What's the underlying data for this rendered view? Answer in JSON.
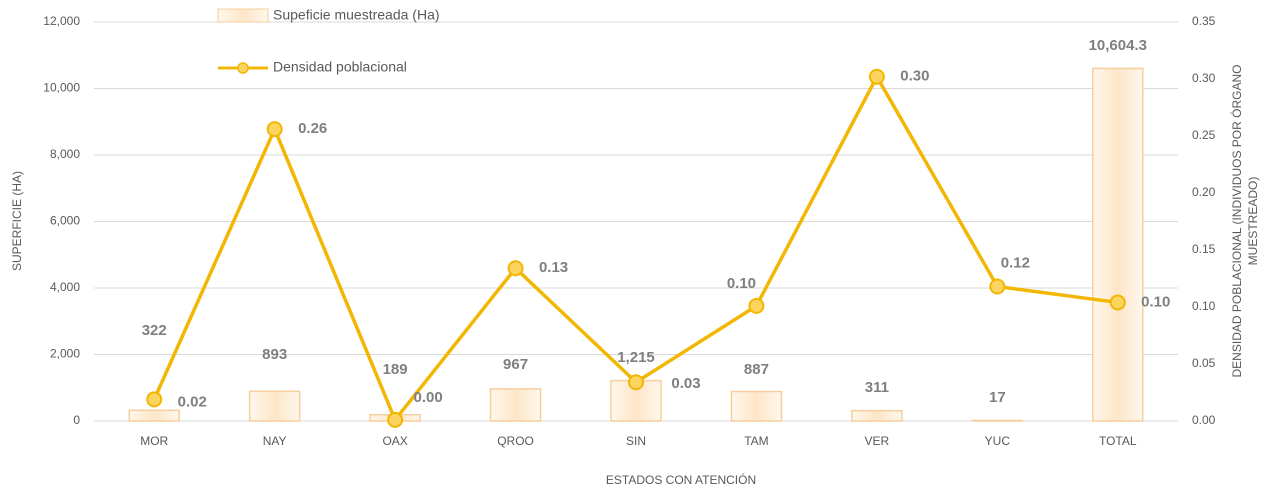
{
  "chart_data": {
    "type": "bar_line",
    "xlabel": "ESTADOS CON ATENCIÓN",
    "ylabel": "SUPERFICIE (HA)",
    "y2label": [
      "DENSIDAD POBLACIONAL (INDIVIDUOS POR ÓRGANO",
      "MUESTREADO)"
    ],
    "categories": [
      "MOR",
      "NAY",
      "OAX",
      "QROO",
      "SIN",
      "TAM",
      "VER",
      "YUC",
      "TOTAL"
    ],
    "series": [
      {
        "name": "Supeficie muestreada (Ha)",
        "type": "bar",
        "color": "#fde6c8",
        "stroke": "#f6cf9c",
        "values": [
          322,
          893,
          189,
          967,
          1215,
          887,
          311,
          17,
          10604.3
        ],
        "value_labels": [
          "322",
          "893",
          "189",
          "967",
          "1,215",
          "887",
          "311",
          "17",
          "10,604.3"
        ]
      },
      {
        "name": "Densidad poblacional",
        "type": "line",
        "axis": "y2",
        "color": "#f2b705",
        "marker_color": "#fcd45f",
        "values": [
          0.019,
          0.256,
          0.001,
          0.134,
          0.034,
          0.101,
          0.302,
          0.118,
          0.104
        ],
        "value_labels": [
          "0.02",
          "0.26",
          "0.00",
          "0.13",
          "0.03",
          "0.10",
          "0.30",
          "0.12",
          "0.10"
        ]
      }
    ],
    "ylim": [
      0,
      12000
    ],
    "yticks": [
      0,
      {
        "value": 2000,
        "label": "2,000"
      },
      {
        "value": 4000,
        "label": "4,000"
      },
      {
        "value": 6000,
        "label": "6,000"
      },
      {
        "value": 8000,
        "label": "8,000"
      },
      {
        "value": 10000,
        "label": "10,000"
      },
      {
        "value": 12000,
        "label": "12,000"
      }
    ],
    "y2lim": [
      0,
      0.35
    ],
    "y2ticks": [
      {
        "value": 0,
        "label": "0.00"
      },
      {
        "value": 0.05,
        "label": "0.05"
      },
      {
        "value": 0.1,
        "label": "0.10"
      },
      {
        "value": 0.15,
        "label": "0.15"
      },
      {
        "value": 0.2,
        "label": "0.20"
      },
      {
        "value": 0.25,
        "label": "0.25"
      },
      {
        "value": 0.3,
        "label": "0.30"
      },
      {
        "value": 0.35,
        "label": "0.35"
      }
    ],
    "grid": true
  }
}
